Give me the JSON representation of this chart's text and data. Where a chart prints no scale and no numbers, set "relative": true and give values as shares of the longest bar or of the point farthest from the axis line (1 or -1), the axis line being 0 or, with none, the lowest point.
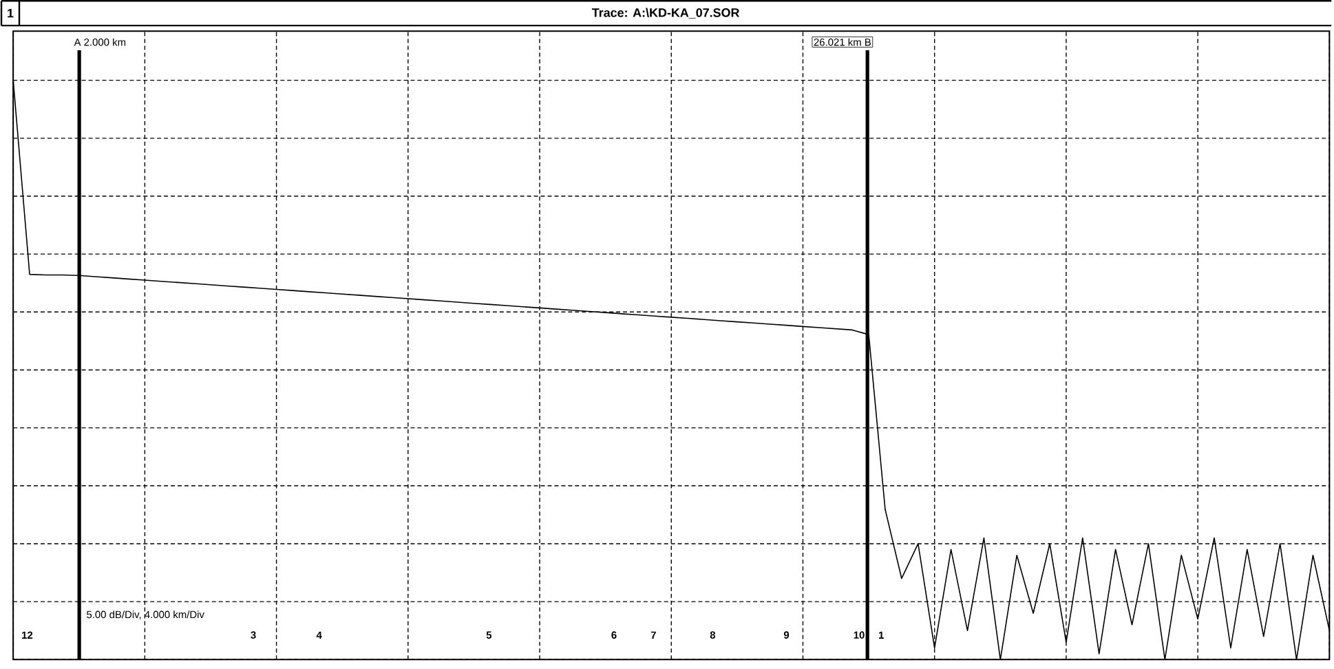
{
  "chart_data": {
    "type": "line",
    "title": "Trace: A:\\KD-KA_07.SOR",
    "relative": true,
    "categories": [
      null,
      null,
      null,
      null,
      null,
      null,
      null,
      null,
      null,
      null,
      null,
      null,
      null,
      null,
      null,
      null,
      null,
      null,
      null,
      null,
      null,
      null,
      null,
      null,
      null,
      null,
      null,
      null,
      null,
      null,
      null,
      null,
      null,
      null,
      null,
      null,
      null,
      null,
      null,
      null,
      null,
      null,
      null,
      null,
      null,
      null,
      null,
      null,
      null,
      null,
      null,
      null,
      null,
      null,
      null,
      null,
      null,
      null,
      null,
      null,
      null,
      null,
      null,
      null,
      null,
      null,
      null,
      null,
      null,
      null,
      null,
      null,
      null,
      null,
      null,
      null,
      null,
      null,
      null,
      null,
      null
    ],
    "series": [
      {
        "color": "#000000",
        "values": [
          1.0,
          0.665,
          0.664,
          0.664,
          0.663,
          0.661,
          0.659,
          0.657,
          0.655,
          0.653,
          0.651,
          0.649,
          0.647,
          0.645,
          0.643,
          0.641,
          0.639,
          0.637,
          0.635,
          0.633,
          0.631,
          0.629,
          0.627,
          0.625,
          0.623,
          0.621,
          0.619,
          0.617,
          0.615,
          0.613,
          0.611,
          0.609,
          0.607,
          0.605,
          0.603,
          0.601,
          0.599,
          0.597,
          0.595,
          0.593,
          0.591,
          0.589,
          0.587,
          0.585,
          0.583,
          0.581,
          0.579,
          0.577,
          0.575,
          0.573,
          0.571,
          0.569,
          0.561,
          0.259,
          0.14,
          0.2,
          0.02,
          0.19,
          0.05,
          0.21,
          0.0,
          0.18,
          0.08,
          0.2,
          0.03,
          0.21,
          0.01,
          0.19,
          0.06,
          0.2,
          0.0,
          0.18,
          0.07,
          0.21,
          0.02,
          0.19,
          0.04,
          0.2,
          0.0,
          0.18,
          0.05
        ]
      }
    ],
    "grid": true,
    "line_style": "solid",
    "marker": "none",
    "annotations": [
      "1",
      "5.00 dB/Div, 4.000 km/Div",
      "A 2.000 km",
      "26.021 km B",
      "12",
      "3",
      "4",
      "5",
      "6",
      "7",
      "8",
      "9",
      "10",
      "1"
    ]
  }
}
